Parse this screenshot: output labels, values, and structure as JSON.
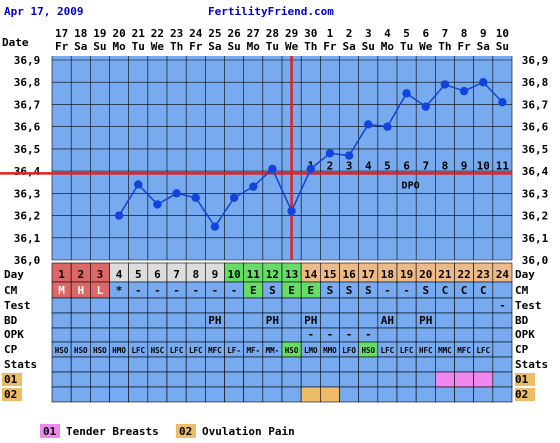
{
  "header": {
    "date": "Apr 17, 2009",
    "site": "FertilityFriend.com"
  },
  "colors": {
    "grid_bg": "#77aaee",
    "grid_line": "#000000",
    "temp_line": "#1144dd",
    "coverline": "#dd2222",
    "ovulation_line": "#dd2222",
    "period_cell": "#dd6666",
    "fertile_cell": "#66dd66",
    "lp_cell": "#eebb88",
    "normal_cell": "#dddddd",
    "legend_pink": "#ee88ee",
    "legend_orange": "#eebb66",
    "header_text": "#0000cc"
  },
  "row_labels": {
    "date": "Date",
    "day": "Day",
    "cm": "CM",
    "test": "Test",
    "bd": "BD",
    "opk": "OPK",
    "cp": "CP",
    "stats": "Stats",
    "s01": "01",
    "s02": "02"
  },
  "dates": [
    "17",
    "18",
    "19",
    "20",
    "21",
    "22",
    "23",
    "24",
    "25",
    "26",
    "27",
    "28",
    "29",
    "30",
    "1",
    "2",
    "3",
    "4",
    "5",
    "6",
    "7",
    "8",
    "9",
    "10"
  ],
  "weekdays": [
    "Fr",
    "Sa",
    "Su",
    "Mo",
    "Tu",
    "We",
    "Th",
    "Fr",
    "Sa",
    "Su",
    "Mo",
    "Tu",
    "We",
    "Th",
    "Fr",
    "Sa",
    "Su",
    "Mo",
    "Tu",
    "We",
    "Th",
    "Fr",
    "Sa",
    "Su"
  ],
  "day_nums": [
    "1",
    "2",
    "3",
    "4",
    "5",
    "6",
    "7",
    "8",
    "9",
    "10",
    "11",
    "12",
    "13",
    "14",
    "15",
    "16",
    "17",
    "18",
    "19",
    "20",
    "21",
    "22",
    "23",
    "24"
  ],
  "cm": [
    "M",
    "H",
    "L",
    "*",
    "-",
    "-",
    "-",
    "-",
    "-",
    "-",
    "E",
    "S",
    "E",
    "E",
    "S",
    "S",
    "S",
    "-",
    "-",
    "S",
    "C",
    "C",
    "C",
    ""
  ],
  "test": [
    "",
    "",
    "",
    "",
    "",
    "",
    "",
    "",
    "",
    "",
    "",
    "",
    "",
    "",
    "",
    "",
    "",
    "",
    "",
    "",
    "",
    "",
    "",
    "-"
  ],
  "bd": [
    "",
    "",
    "",
    "",
    "",
    "",
    "",
    "",
    "PH",
    "",
    "",
    "PH",
    "",
    "PH",
    "",
    "",
    "",
    "AH",
    "",
    "PH",
    "",
    "",
    "",
    ""
  ],
  "opk": [
    "",
    "",
    "",
    "",
    "",
    "",
    "",
    "",
    "",
    "",
    "",
    "",
    "",
    "-",
    "-",
    "-",
    "-",
    "",
    "",
    "",
    "",
    "",
    "",
    ""
  ],
  "cp": [
    "HSO",
    "HSO",
    "HSO",
    "HMO",
    "LFC",
    "HSC",
    "LFC",
    "LFC",
    "MFC",
    "LF-",
    "MF-",
    "MM-",
    "HSO",
    "LMO",
    "MMO",
    "LFO",
    "HSO",
    "LFC",
    "LFC",
    "HFC",
    "MMC",
    "MFC",
    "LFC",
    ""
  ],
  "s01_marks": [
    20,
    21,
    22
  ],
  "s02_marks": [
    13,
    14
  ],
  "legend": [
    {
      "code": "01",
      "text": "Tender Breasts"
    },
    {
      "code": "02",
      "text": "Ovulation Pain"
    }
  ],
  "dpo": {
    "label": "DPO",
    "numbers": [
      "1",
      "2",
      "3",
      "4",
      "5",
      "6",
      "7",
      "8",
      "9",
      "10",
      "11"
    ]
  },
  "chart_data": {
    "type": "line",
    "title": "",
    "xlabel": "Date",
    "ylabel": "",
    "ylim": [
      36.0,
      36.9
    ],
    "yticks": [
      "36,9",
      "36,8",
      "36,7",
      "36,6",
      "36,5",
      "36,4",
      "36,3",
      "36,2",
      "36,1",
      "36,0"
    ],
    "x": [
      "17",
      "18",
      "19",
      "20",
      "21",
      "22",
      "23",
      "24",
      "25",
      "26",
      "27",
      "28",
      "29",
      "30",
      "1",
      "2",
      "3",
      "4",
      "5",
      "6",
      "7",
      "8",
      "9",
      "10"
    ],
    "series": [
      {
        "values": [
          null,
          null,
          null,
          36.2,
          36.34,
          36.25,
          36.3,
          36.28,
          36.15,
          36.28,
          36.33,
          36.41,
          36.22,
          36.41,
          36.48,
          36.47,
          36.61,
          36.6,
          36.75,
          36.69,
          36.79,
          36.76,
          36.8,
          36.71
        ]
      }
    ],
    "coverline": 36.39,
    "ovulation_day_index": 12,
    "grid": true
  }
}
